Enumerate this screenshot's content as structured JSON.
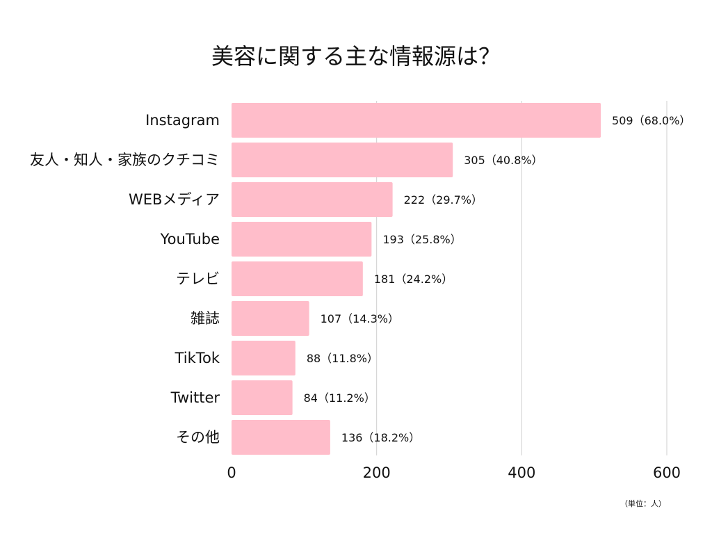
{
  "colors": {
    "bar": "#ffbdca",
    "grid": "#cfcfcf",
    "text": "#111111"
  },
  "chart_data": {
    "type": "bar",
    "orientation": "horizontal",
    "title": "美容に関する主な情報源は？",
    "unit_note": "（単位：人）",
    "categories": [
      "Instagram",
      "友人・知人・家族のクチコミ",
      "WEBメディア",
      "YouTube",
      "テレビ",
      "雑誌",
      "TikTok",
      "Twitter",
      "その他"
    ],
    "values": [
      509,
      305,
      222,
      193,
      181,
      107,
      88,
      84,
      136
    ],
    "value_labels": [
      "509（68.0%）",
      "305（40.8%）",
      "222（29.7%）",
      "193（25.8%）",
      "181（24.2%）",
      "107（14.3%）",
      "88（11.8%）",
      "84（11.2%）",
      "136（18.2%）"
    ],
    "xlim": [
      0,
      600
    ],
    "x_ticks": [
      0,
      200,
      400,
      600
    ],
    "x_tick_labels": [
      "0",
      "200",
      "400",
      "600"
    ],
    "grid": true
  }
}
